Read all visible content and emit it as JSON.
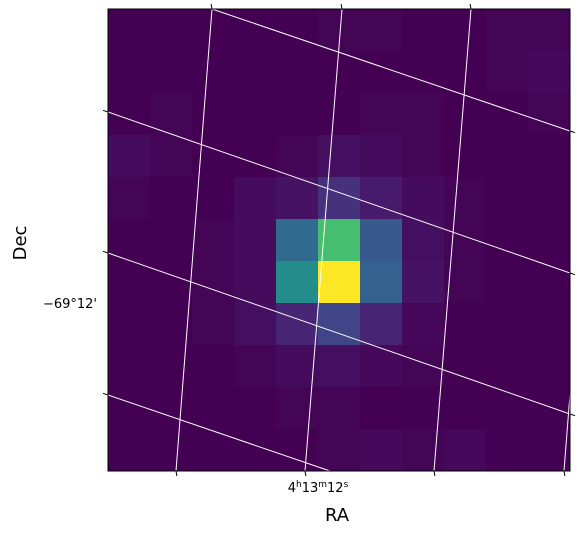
{
  "chart_data": {
    "type": "heatmap",
    "title": "",
    "projection": "WCS (RA/Dec)",
    "xlabel": "RA",
    "ylabel": "Dec",
    "x_tick_labels": [
      "4h13m12s"
    ],
    "y_tick_labels": [
      "−69°12'"
    ],
    "x_tick_label_text": {
      "base": "4",
      "h": "h",
      "min": "13",
      "m": "m",
      "sec": "12",
      "s": "s"
    },
    "colormap": "viridis",
    "grid": true,
    "grid_color": "#ffffff",
    "value_range": [
      0,
      1
    ],
    "pixel_values": [
      [
        0.0,
        0.0,
        0.0,
        0.0,
        0.0,
        0.01,
        0.01,
        0.0,
        0.0,
        0.01,
        0.01
      ],
      [
        0.0,
        0.0,
        0.0,
        0.0,
        0.0,
        0.0,
        0.0,
        0.0,
        0.0,
        0.01,
        0.02
      ],
      [
        0.0,
        0.01,
        0.0,
        0.0,
        0.0,
        0.0,
        0.01,
        0.01,
        0.0,
        0.0,
        0.01
      ],
      [
        0.03,
        0.01,
        0.0,
        0.0,
        0.01,
        0.04,
        0.03,
        0.01,
        0.0,
        0.0,
        0.0
      ],
      [
        0.01,
        0.0,
        0.0,
        0.03,
        0.05,
        0.14,
        0.07,
        0.03,
        0.01,
        0.0,
        0.0
      ],
      [
        0.0,
        0.0,
        0.01,
        0.03,
        0.34,
        0.7,
        0.28,
        0.04,
        0.01,
        0.0,
        0.0
      ],
      [
        0.0,
        0.0,
        0.01,
        0.03,
        0.49,
        1.0,
        0.31,
        0.05,
        0.01,
        0.0,
        0.0
      ],
      [
        0.0,
        0.0,
        0.01,
        0.04,
        0.1,
        0.21,
        0.1,
        0.02,
        0.0,
        0.0,
        0.0
      ],
      [
        0.0,
        0.0,
        0.0,
        0.01,
        0.03,
        0.04,
        0.02,
        0.01,
        0.0,
        0.0,
        0.0
      ],
      [
        0.0,
        0.0,
        0.0,
        0.0,
        0.01,
        0.01,
        0.0,
        0.0,
        0.0,
        0.0,
        0.0
      ],
      [
        0.0,
        0.0,
        0.0,
        0.0,
        0.0,
        0.01,
        0.02,
        0.01,
        0.02,
        0.0,
        0.0
      ]
    ],
    "viridis_stops": [
      "#440154",
      "#482878",
      "#3e4989",
      "#31688e",
      "#26828e",
      "#1f9e89",
      "#35b779",
      "#6ece58",
      "#b5de2b",
      "#fde725"
    ]
  }
}
